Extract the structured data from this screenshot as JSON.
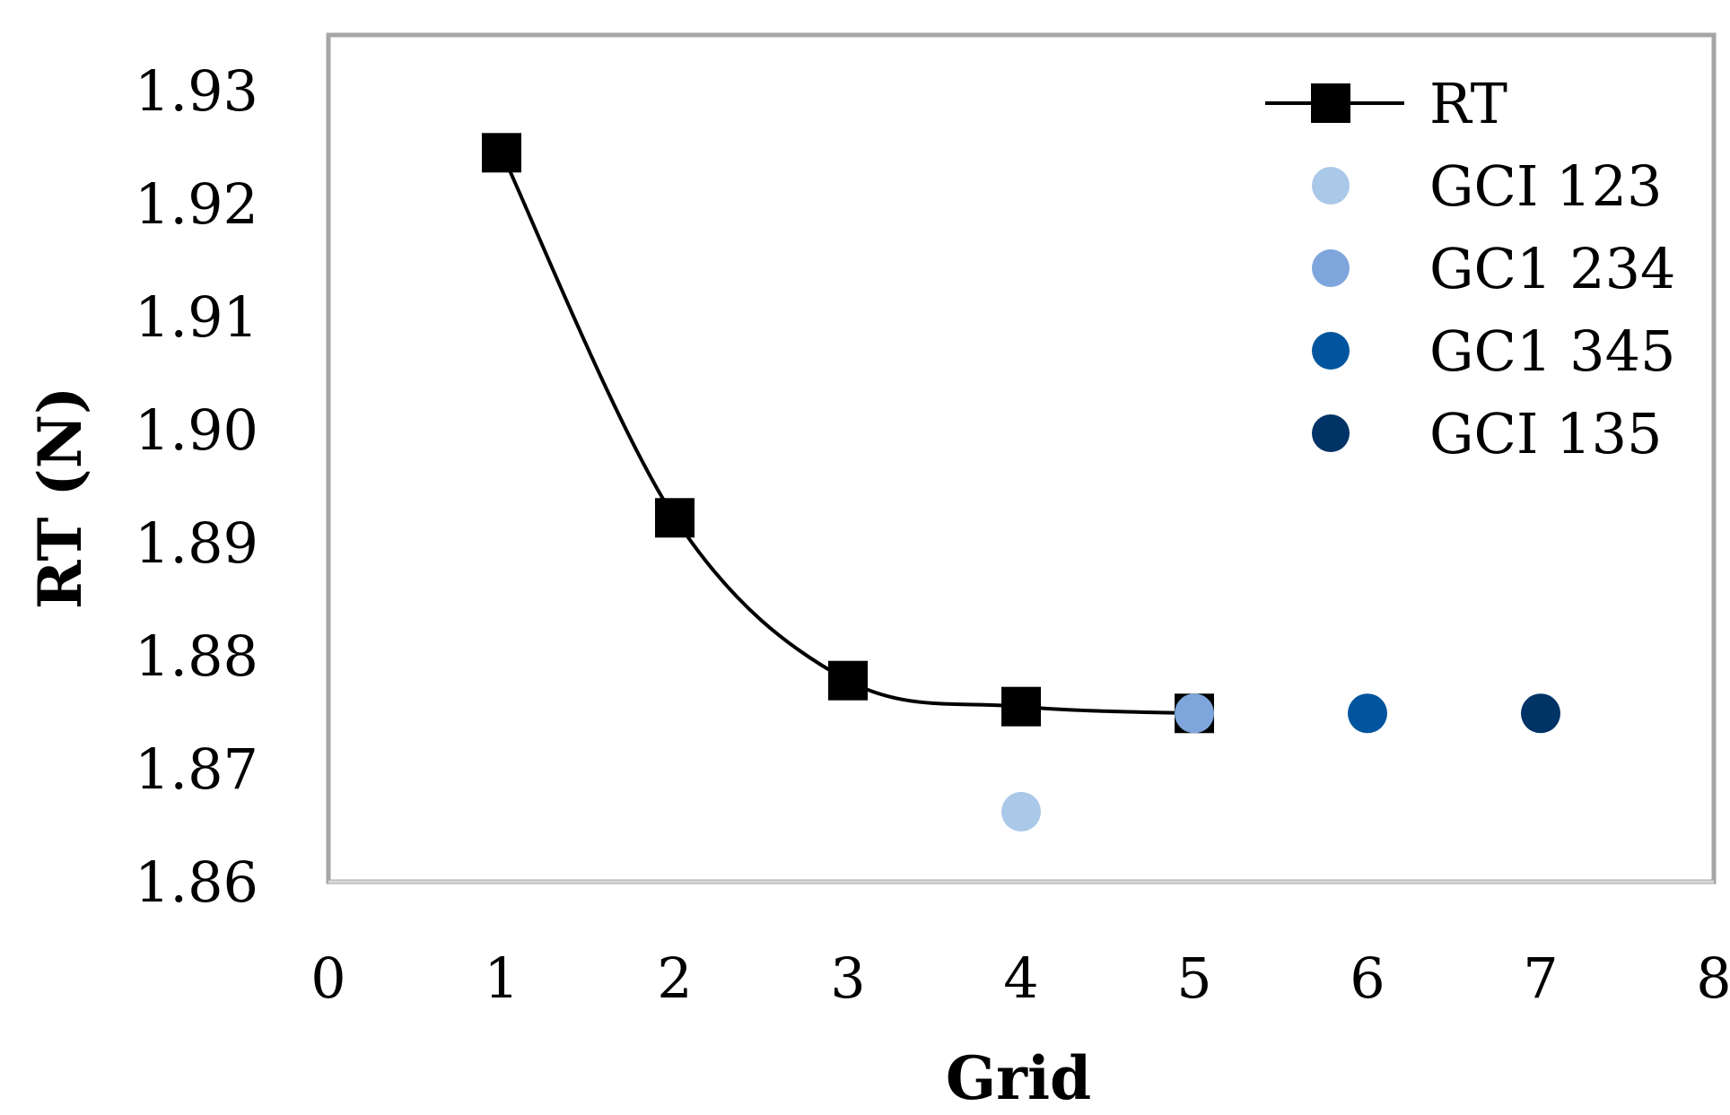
{
  "chart_data": {
    "type": "scatter",
    "xlabel": "Grid",
    "ylabel": "RT (N)",
    "xlim": [
      0,
      8
    ],
    "ylim": [
      1.86,
      1.93
    ],
    "xticks": [
      "0",
      "1",
      "2",
      "3",
      "4",
      "5",
      "6",
      "7",
      "8"
    ],
    "yticks": [
      "1.86",
      "1.87",
      "1.88",
      "1.89",
      "1.90",
      "1.91",
      "1.92",
      "1.93"
    ],
    "grid": false,
    "legend_position": "top-right",
    "series": [
      {
        "name": "RT",
        "marker": "square",
        "line": "smooth",
        "color": "#000000",
        "points": [
          {
            "x": 1,
            "y": 1.9245
          },
          {
            "x": 2,
            "y": 1.8922
          },
          {
            "x": 3,
            "y": 1.8778
          },
          {
            "x": 4,
            "y": 1.8755
          },
          {
            "x": 5,
            "y": 1.8749
          }
        ]
      },
      {
        "name": "GCI 123",
        "marker": "circle",
        "color": "#aac8e8",
        "points": [
          {
            "x": 4,
            "y": 1.8662
          }
        ]
      },
      {
        "name": "GC1 234",
        "marker": "circle",
        "color": "#7ea6dc",
        "points": [
          {
            "x": 5,
            "y": 1.8749
          }
        ]
      },
      {
        "name": "GC1 345",
        "marker": "circle",
        "color": "#00559e",
        "points": [
          {
            "x": 6,
            "y": 1.8749
          }
        ]
      },
      {
        "name": "GCI 135",
        "marker": "circle",
        "color": "#003366",
        "points": [
          {
            "x": 7,
            "y": 1.8749
          }
        ]
      }
    ]
  },
  "colors": {
    "plot_border": "#a6a6a6",
    "line": "#000000"
  }
}
